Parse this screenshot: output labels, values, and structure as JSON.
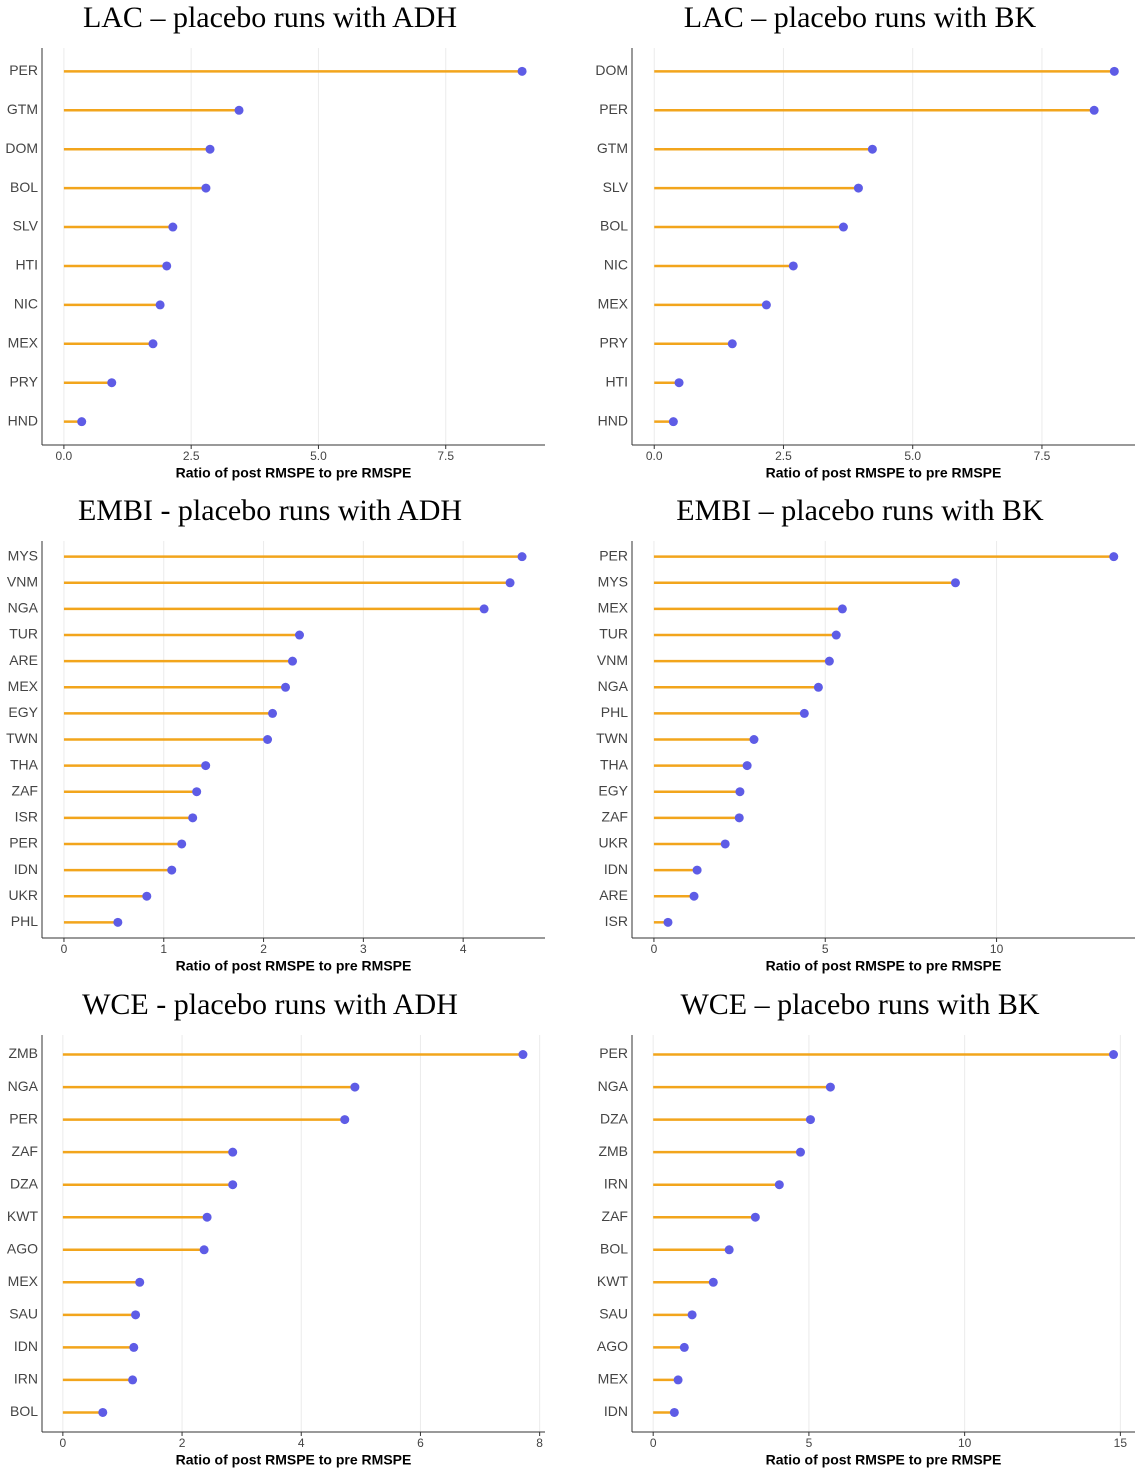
{
  "chart_data": [
    {
      "type": "lollipop",
      "title": "LAC – placebo runs with ADH",
      "xlabel": "Ratio of post RMSPE to pre RMSPE",
      "categories": [
        "PER",
        "GTM",
        "DOM",
        "BOL",
        "SLV",
        "HTI",
        "NIC",
        "MEX",
        "PRY",
        "HND"
      ],
      "values": [
        9.0,
        3.44,
        2.87,
        2.79,
        2.14,
        2.02,
        1.89,
        1.75,
        0.94,
        0.35
      ],
      "xlim": [
        -0.43,
        9.45
      ],
      "xticks": [
        {
          "value": 0,
          "label": "0.0"
        },
        2.5,
        {
          "value": 5,
          "label": "5.0"
        },
        7.5
      ],
      "grid": true,
      "line_color": "#F2A51C",
      "marker_color": "#5E5CE6"
    },
    {
      "type": "lollipop",
      "title": "LAC – placebo runs with BK",
      "xlabel": "Ratio of post RMSPE to pre RMSPE",
      "categories": [
        "DOM",
        "PER",
        "GTM",
        "SLV",
        "BOL",
        "NIC",
        "MEX",
        "PRY",
        "HTI",
        "HND"
      ],
      "values": [
        8.9,
        8.51,
        4.22,
        3.95,
        3.66,
        2.69,
        2.17,
        1.51,
        0.48,
        0.37
      ],
      "xlim": [
        -0.43,
        9.3
      ],
      "xticks": [
        {
          "value": 0,
          "label": "0.0"
        },
        2.5,
        {
          "value": 5,
          "label": "5.0"
        },
        7.5
      ],
      "grid": true,
      "line_color": "#F2A51C",
      "marker_color": "#5E5CE6"
    },
    {
      "type": "lollipop",
      "title": "EMBI - placebo runs with ADH",
      "xlabel": "Ratio of post RMSPE to pre RMSPE",
      "categories": [
        "MYS",
        "VNM",
        "NGA",
        "TUR",
        "ARE",
        "MEX",
        "EGY",
        "TWN",
        "THA",
        "ZAF",
        "ISR",
        "PER",
        "IDN",
        "UKR",
        "PHL"
      ],
      "values": [
        4.59,
        4.47,
        4.21,
        2.36,
        2.29,
        2.22,
        2.09,
        2.04,
        1.42,
        1.33,
        1.29,
        1.18,
        1.08,
        0.83,
        0.54
      ],
      "xlim": [
        -0.22,
        4.82
      ],
      "xticks": [
        0,
        1,
        2,
        3,
        4
      ],
      "grid": true,
      "line_color": "#F2A51C",
      "marker_color": "#5E5CE6"
    },
    {
      "type": "lollipop",
      "title": "EMBI – placebo runs with BK",
      "xlabel": "Ratio of post RMSPE to pre RMSPE",
      "categories": [
        "PER",
        "MYS",
        "MEX",
        "TUR",
        "VNM",
        "NGA",
        "PHL",
        "TWN",
        "THA",
        "EGY",
        "ZAF",
        "UKR",
        "IDN",
        "ARE",
        "ISR"
      ],
      "values": [
        13.42,
        8.8,
        5.5,
        5.32,
        5.12,
        4.8,
        4.39,
        2.92,
        2.72,
        2.51,
        2.49,
        2.08,
        1.26,
        1.17,
        0.41
      ],
      "xlim": [
        -0.64,
        14.04
      ],
      "xticks": [
        0,
        5,
        10
      ],
      "grid": true,
      "line_color": "#F2A51C",
      "marker_color": "#5E5CE6"
    },
    {
      "type": "lollipop",
      "title": "WCE - placebo runs with ADH",
      "xlabel": "Ratio of post RMSPE to pre RMSPE",
      "categories": [
        "ZMB",
        "NGA",
        "PER",
        "ZAF",
        "DZA",
        "KWT",
        "AGO",
        "MEX",
        "SAU",
        "IDN",
        "IRN",
        "BOL"
      ],
      "values": [
        7.72,
        4.9,
        4.73,
        2.85,
        2.85,
        2.42,
        2.37,
        1.29,
        1.22,
        1.19,
        1.17,
        0.67
      ],
      "xlim": [
        -0.35,
        8.09
      ],
      "xticks": [
        0,
        2,
        4,
        6,
        8
      ],
      "grid": true,
      "line_color": "#F2A51C",
      "marker_color": "#5E5CE6"
    },
    {
      "type": "lollipop",
      "title": "WCE – placebo runs with BK",
      "xlabel": "Ratio of post RMSPE to pre RMSPE",
      "categories": [
        "PER",
        "NGA",
        "DZA",
        "ZMB",
        "IRN",
        "ZAF",
        "BOL",
        "KWT",
        "SAU",
        "AGO",
        "MEX",
        "IDN"
      ],
      "values": [
        14.78,
        5.69,
        5.05,
        4.73,
        4.05,
        3.28,
        2.44,
        1.93,
        1.25,
        1.0,
        0.8,
        0.68
      ],
      "xlim": [
        -0.68,
        15.47
      ],
      "xticks": [
        0,
        5,
        10,
        15
      ],
      "grid": true,
      "line_color": "#F2A51C",
      "marker_color": "#5E5CE6"
    }
  ]
}
